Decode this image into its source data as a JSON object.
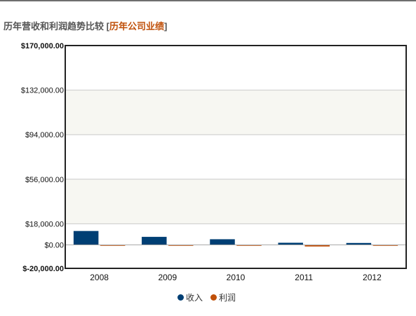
{
  "header": {
    "title": "历年营收和利润趋势比较",
    "bracket_open": "[",
    "link_label": "历年公司业绩",
    "bracket_close": "]"
  },
  "chart_data": {
    "type": "bar",
    "categories": [
      "2008",
      "2009",
      "2010",
      "2011",
      "2012"
    ],
    "series": [
      {
        "name": "收入",
        "color": "#003f74",
        "values": [
          12000,
          7000,
          5000,
          2000,
          1800
        ]
      },
      {
        "name": "利润",
        "color": "#c0500a",
        "values": [
          -400,
          -200,
          -200,
          -1500,
          -300
        ]
      }
    ],
    "ylim": [
      -20000,
      170000
    ],
    "y_tick_values": [
      -20000,
      0,
      18000,
      56000,
      94000,
      132000,
      170000
    ],
    "y_tick_labels": [
      "$-20,000.00",
      "$0.00",
      "$18,000.00",
      "$56,000.00",
      "$94,000.00",
      "$132,000.00",
      "$170,000.00"
    ],
    "grid": true,
    "legend_position": "bottom-center",
    "background_band_color": "#f7f7f2"
  }
}
